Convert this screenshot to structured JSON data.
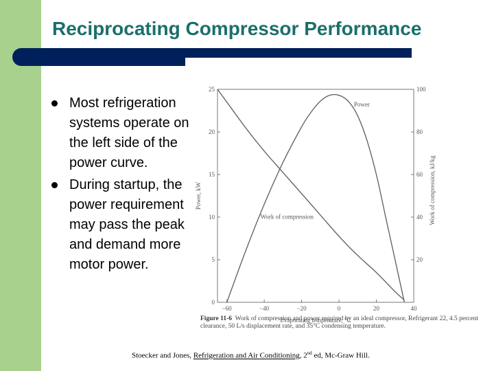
{
  "slide": {
    "title": "Reciprocating Compressor Performance",
    "bullets": [
      "Most refrigeration systems operate on the left side of the power curve.",
      "During startup, the power requirement may pass the peak and demand more motor power."
    ],
    "colors": {
      "title": "#1b6f6b",
      "left_strip": "#a9d18e",
      "bar": "#00205b"
    }
  },
  "figure": {
    "caption_label": "Figure 11-6",
    "caption_text": "Work of compression and power required by an ideal compressor, Refrigerant 22, 4.5 percent clearance, 50 L/s displacement rate, and 35°C condensing temperature."
  },
  "citation": {
    "authors": "Stoecker and Jones, ",
    "book": "Refrigeration and Air Conditioning",
    "sep": ", ",
    "edition_num": "2",
    "edition_sup": "nd",
    "rest": " ed, Mc-Graw Hill."
  },
  "chart_data": {
    "type": "line",
    "xlabel": "Evaporating temperature, °C",
    "ylabel": "Power, kW",
    "y2label": "Work of compression, kJ/kg",
    "xlim": [
      -65,
      40
    ],
    "ylim": [
      0,
      25
    ],
    "y2lim": [
      0,
      100
    ],
    "x_ticks": [
      -60,
      -40,
      -20,
      0,
      20,
      40
    ],
    "x_tick_labels": [
      "−60",
      "−40",
      "−20",
      "0",
      "20",
      "40"
    ],
    "y_ticks": [
      0,
      5,
      10,
      15,
      20,
      25
    ],
    "y_tick_labels": [
      "0",
      "5",
      "10",
      "15",
      "20",
      "25"
    ],
    "y2_ticks": [
      20,
      40,
      60,
      80,
      100
    ],
    "y2_tick_labels": [
      "20",
      "40",
      "60",
      "80",
      "100"
    ],
    "series": [
      {
        "name": "Power",
        "axis": "left",
        "x": [
          -60,
          -50,
          -40,
          -30,
          -20,
          -15,
          -10,
          -5,
          0,
          5,
          10,
          15,
          20,
          25,
          30,
          35
        ],
        "y": [
          0,
          6,
          11.5,
          16.4,
          20.6,
          22.3,
          23.6,
          24.3,
          24.3,
          23.6,
          21.9,
          19,
          15,
          10,
          5,
          0
        ]
      },
      {
        "name": "Work of compression",
        "axis": "right",
        "x": [
          -65,
          -60,
          -50,
          -40,
          -30,
          -20,
          -10,
          0,
          10,
          20,
          30,
          35
        ],
        "y": [
          100,
          94,
          82,
          71,
          61,
          51,
          41,
          31,
          22,
          14,
          5,
          1
        ]
      }
    ]
  }
}
